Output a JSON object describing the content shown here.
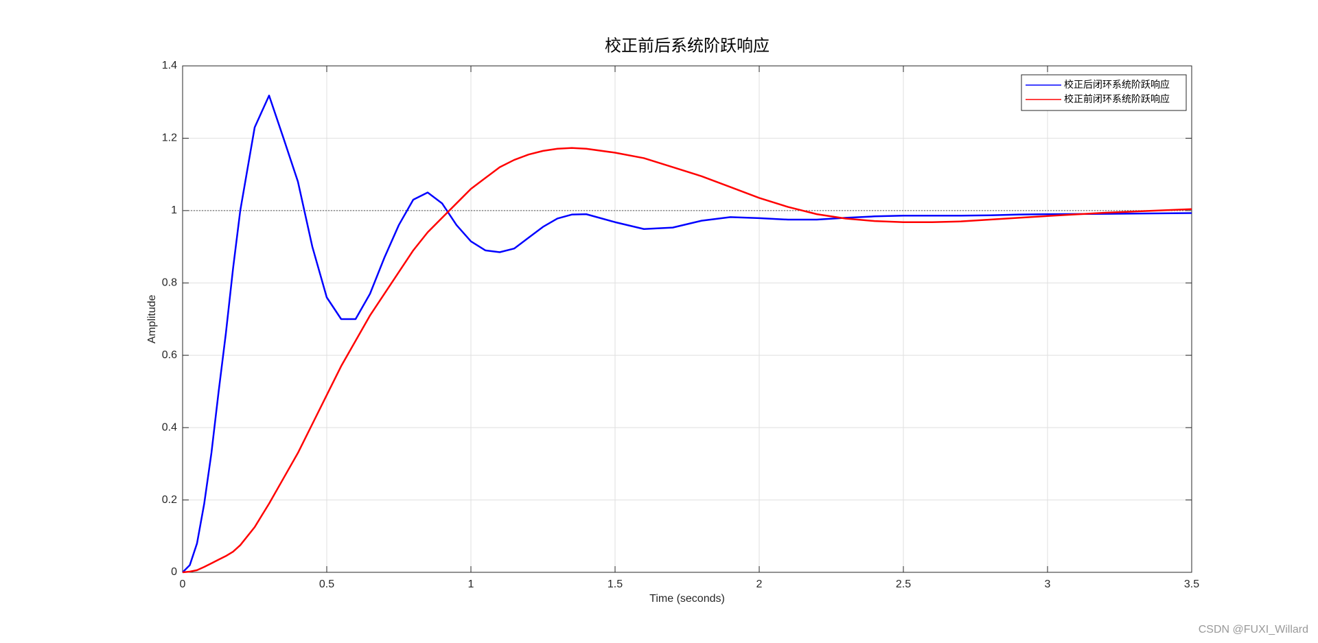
{
  "chart_data": {
    "type": "line",
    "title": "校正前后系统阶跃响应",
    "xlabel": "Time (seconds)",
    "ylabel": "Amplitude",
    "x": [
      0,
      0.025,
      0.05,
      0.075,
      0.1,
      0.125,
      0.15,
      0.175,
      0.2,
      0.25,
      0.3,
      0.35,
      0.4,
      0.45,
      0.5,
      0.55,
      0.6,
      0.65,
      0.7,
      0.75,
      0.8,
      0.85,
      0.9,
      0.95,
      1.0,
      1.05,
      1.1,
      1.15,
      1.2,
      1.25,
      1.3,
      1.35,
      1.4,
      1.5,
      1.6,
      1.7,
      1.8,
      1.9,
      2.0,
      2.1,
      2.2,
      2.3,
      2.4,
      2.5,
      2.6,
      2.7,
      2.8,
      2.9,
      3.0,
      3.2,
      3.5
    ],
    "series": [
      {
        "name": "校正后闭环系统阶跃响应",
        "color": "#0000ff",
        "values": [
          0,
          0.02,
          0.08,
          0.19,
          0.33,
          0.5,
          0.66,
          0.84,
          1.0,
          1.23,
          1.318,
          1.2,
          1.08,
          0.9,
          0.76,
          0.7,
          0.7,
          0.77,
          0.87,
          0.96,
          1.03,
          1.05,
          1.02,
          0.96,
          0.915,
          0.89,
          0.885,
          0.895,
          0.925,
          0.955,
          0.978,
          0.989,
          0.99,
          0.968,
          0.949,
          0.953,
          0.972,
          0.982,
          0.979,
          0.975,
          0.975,
          0.98,
          0.984,
          0.986,
          0.986,
          0.986,
          0.987,
          0.989,
          0.99,
          0.991,
          0.993
        ]
      },
      {
        "name": "校正前闭环系统阶跃响应",
        "color": "#ff0000",
        "values": [
          0,
          0.002,
          0.006,
          0.015,
          0.025,
          0.035,
          0.045,
          0.057,
          0.075,
          0.125,
          0.19,
          0.26,
          0.33,
          0.41,
          0.49,
          0.57,
          0.64,
          0.71,
          0.77,
          0.83,
          0.89,
          0.94,
          0.98,
          1.02,
          1.06,
          1.09,
          1.12,
          1.14,
          1.155,
          1.165,
          1.171,
          1.173,
          1.171,
          1.16,
          1.145,
          1.12,
          1.095,
          1.065,
          1.035,
          1.01,
          0.99,
          0.978,
          0.971,
          0.968,
          0.968,
          0.97,
          0.975,
          0.98,
          0.985,
          0.994,
          1.004
        ]
      }
    ],
    "xlim": [
      0,
      3.5
    ],
    "xticks": [
      0,
      0.5,
      1,
      1.5,
      2,
      2.5,
      3,
      3.5
    ],
    "ylim": [
      0,
      1.4
    ],
    "yticks": [
      0,
      0.2,
      0.4,
      0.6,
      0.8,
      1,
      1.2,
      1.4
    ],
    "grid": true,
    "legend": "upper right",
    "reference_line": 1,
    "watermark": "CSDN @FUXI_Willard"
  }
}
